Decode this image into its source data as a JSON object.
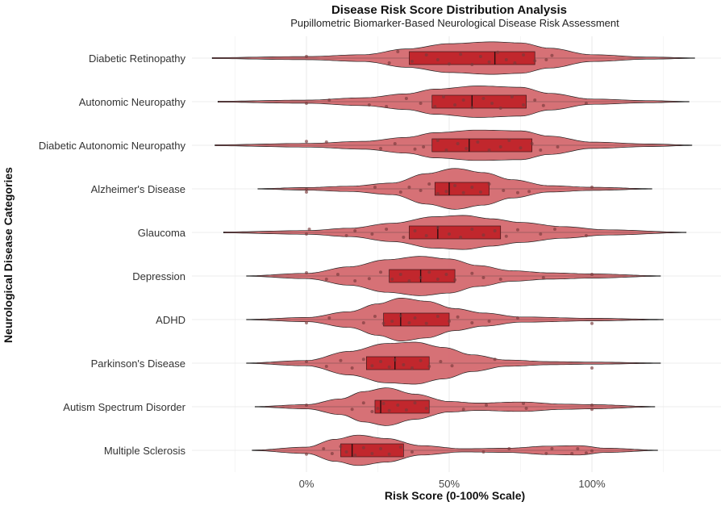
{
  "chart_data": {
    "type": "violin",
    "title": "Disease Risk Score Distribution Analysis",
    "subtitle": "Pupillometric Biomarker-Based Neurological Disease Risk Assessment",
    "xlabel": "Risk Score (0-100% Scale)",
    "ylabel": "Neurological Disease Categories",
    "x_ticks": [
      "0%",
      "50%",
      "100%"
    ],
    "x_tick_values": [
      0,
      50,
      100
    ],
    "xlim": [
      -30,
      145
    ],
    "grid": true,
    "colors": {
      "violin_fill": "#d4696f",
      "box_fill": "#c1272d",
      "point": "#7a3a3c",
      "outline": "#222222"
    },
    "categories": [
      {
        "name": "Diabetic Retinopathy",
        "min": -33,
        "max": 136,
        "q1": 36,
        "median": 66,
        "q3": 80,
        "density": [
          [
            -33,
            0.02
          ],
          [
            0,
            0.06
          ],
          [
            20,
            0.13
          ],
          [
            35,
            0.35
          ],
          [
            50,
            0.55
          ],
          [
            65,
            0.62
          ],
          [
            75,
            0.58
          ],
          [
            85,
            0.38
          ],
          [
            100,
            0.13
          ],
          [
            120,
            0.04
          ],
          [
            136,
            0.01
          ]
        ],
        "points": [
          [
            0,
            -0.05
          ],
          [
            29,
            0.15
          ],
          [
            32,
            -0.2
          ],
          [
            37,
            0.1
          ],
          [
            42,
            -0.1
          ],
          [
            46,
            0.05
          ],
          [
            50,
            0.18
          ],
          [
            54,
            -0.12
          ],
          [
            58,
            0.2
          ],
          [
            61,
            -0.05
          ],
          [
            64,
            0.12
          ],
          [
            67,
            -0.18
          ],
          [
            70,
            0.05
          ],
          [
            73,
            0.15
          ],
          [
            76,
            -0.1
          ],
          [
            80,
            0.08
          ],
          [
            84,
            0.05
          ],
          [
            86,
            -0.08
          ]
        ]
      },
      {
        "name": "Autonomic Neuropathy",
        "min": -31,
        "max": 134,
        "q1": 44,
        "median": 58,
        "q3": 77,
        "density": [
          [
            -31,
            0.02
          ],
          [
            0,
            0.06
          ],
          [
            20,
            0.15
          ],
          [
            35,
            0.3
          ],
          [
            45,
            0.48
          ],
          [
            60,
            0.6
          ],
          [
            75,
            0.55
          ],
          [
            85,
            0.32
          ],
          [
            100,
            0.1
          ],
          [
            120,
            0.04
          ],
          [
            134,
            0.01
          ]
        ],
        "points": [
          [
            0,
            0.05
          ],
          [
            8,
            -0.05
          ],
          [
            22,
            0.1
          ],
          [
            28,
            0.15
          ],
          [
            35,
            -0.1
          ],
          [
            40,
            0.05
          ],
          [
            45,
            0.15
          ],
          [
            48,
            -0.15
          ],
          [
            52,
            0.1
          ],
          [
            55,
            -0.05
          ],
          [
            58,
            0.18
          ],
          [
            62,
            -0.1
          ],
          [
            65,
            0.05
          ],
          [
            68,
            0.2
          ],
          [
            72,
            -0.15
          ],
          [
            76,
            0.1
          ],
          [
            80,
            -0.05
          ],
          [
            83,
            0.12
          ],
          [
            98,
            0.05
          ]
        ]
      },
      {
        "name": "Diabetic Autonomic Neuropathy",
        "min": -32,
        "max": 135,
        "q1": 44,
        "median": 57,
        "q3": 79,
        "density": [
          [
            -32,
            0.02
          ],
          [
            0,
            0.07
          ],
          [
            20,
            0.15
          ],
          [
            35,
            0.3
          ],
          [
            45,
            0.48
          ],
          [
            60,
            0.58
          ],
          [
            75,
            0.55
          ],
          [
            85,
            0.35
          ],
          [
            100,
            0.12
          ],
          [
            120,
            0.05
          ],
          [
            135,
            0.01
          ]
        ],
        "points": [
          [
            0,
            -0.12
          ],
          [
            7,
            -0.1
          ],
          [
            26,
            0.1
          ],
          [
            31,
            -0.05
          ],
          [
            38,
            0.12
          ],
          [
            41,
            0.05
          ],
          [
            46,
            -0.15
          ],
          [
            49,
            0.15
          ],
          [
            53,
            -0.05
          ],
          [
            56,
            0.1
          ],
          [
            60,
            -0.1
          ],
          [
            64,
            0.15
          ],
          [
            68,
            0.05
          ],
          [
            71,
            -0.15
          ],
          [
            75,
            0.08
          ],
          [
            79,
            -0.05
          ],
          [
            82,
            0.15
          ],
          [
            88,
            0.05
          ]
        ]
      },
      {
        "name": "Alzheimer's Disease",
        "min": -17,
        "max": 121,
        "q1": 45,
        "median": 50,
        "q3": 64,
        "density": [
          [
            -17,
            0.01
          ],
          [
            0,
            0.05
          ],
          [
            15,
            0.1
          ],
          [
            30,
            0.22
          ],
          [
            42,
            0.58
          ],
          [
            52,
            0.78
          ],
          [
            62,
            0.62
          ],
          [
            72,
            0.35
          ],
          [
            85,
            0.12
          ],
          [
            100,
            0.06
          ],
          [
            121,
            0.01
          ]
        ],
        "points": [
          [
            0,
            0.1
          ],
          [
            0,
            0.02
          ],
          [
            24,
            -0.05
          ],
          [
            33,
            0.1
          ],
          [
            36,
            -0.05
          ],
          [
            40,
            0.05
          ],
          [
            43,
            -0.15
          ],
          [
            46,
            0.15
          ],
          [
            49,
            0.08
          ],
          [
            52,
            -0.1
          ],
          [
            55,
            0.12
          ],
          [
            58,
            -0.05
          ],
          [
            61,
            0.1
          ],
          [
            64,
            -0.15
          ],
          [
            69,
            0.05
          ],
          [
            74,
            0.12
          ],
          [
            78,
            0.08
          ],
          [
            100,
            -0.05
          ]
        ]
      },
      {
        "name": "Glaucoma",
        "min": -29,
        "max": 133,
        "q1": 36,
        "median": 46,
        "q3": 68,
        "density": [
          [
            -29,
            0.02
          ],
          [
            0,
            0.07
          ],
          [
            15,
            0.16
          ],
          [
            30,
            0.35
          ],
          [
            45,
            0.6
          ],
          [
            55,
            0.65
          ],
          [
            65,
            0.52
          ],
          [
            75,
            0.38
          ],
          [
            90,
            0.22
          ],
          [
            105,
            0.1
          ],
          [
            133,
            0.01
          ]
        ],
        "points": [
          [
            0,
            0.05
          ],
          [
            1,
            -0.1
          ],
          [
            14,
            0.1
          ],
          [
            17,
            -0.05
          ],
          [
            23,
            0.05
          ],
          [
            28,
            -0.1
          ],
          [
            34,
            0.15
          ],
          [
            38,
            -0.05
          ],
          [
            42,
            0.1
          ],
          [
            46,
            -0.15
          ],
          [
            50,
            0.05
          ],
          [
            54,
            0.15
          ],
          [
            58,
            -0.1
          ],
          [
            62,
            0.08
          ],
          [
            66,
            -0.05
          ],
          [
            70,
            0.12
          ],
          [
            74,
            -0.08
          ],
          [
            82,
            0.05
          ],
          [
            87,
            -0.1
          ],
          [
            98,
            0.1
          ]
        ]
      },
      {
        "name": "Depression",
        "min": -21,
        "max": 124,
        "q1": 29,
        "median": 40,
        "q3": 52,
        "density": [
          [
            -21,
            0.01
          ],
          [
            0,
            0.1
          ],
          [
            15,
            0.35
          ],
          [
            28,
            0.62
          ],
          [
            40,
            0.75
          ],
          [
            50,
            0.65
          ],
          [
            60,
            0.4
          ],
          [
            72,
            0.2
          ],
          [
            85,
            0.12
          ],
          [
            100,
            0.08
          ],
          [
            124,
            0.01
          ]
        ],
        "points": [
          [
            0,
            -0.1
          ],
          [
            7,
            0.1
          ],
          [
            11,
            -0.05
          ],
          [
            17,
            0.15
          ],
          [
            22,
            0.08
          ],
          [
            26,
            -0.12
          ],
          [
            30,
            0.1
          ],
          [
            33,
            -0.05
          ],
          [
            36,
            0.15
          ],
          [
            40,
            0.05
          ],
          [
            43,
            -0.12
          ],
          [
            46,
            0.1
          ],
          [
            49,
            -0.05
          ],
          [
            52,
            0.12
          ],
          [
            58,
            -0.08
          ],
          [
            62,
            0.05
          ],
          [
            68,
            0.1
          ],
          [
            83,
            0.05
          ],
          [
            100,
            -0.05
          ]
        ]
      },
      {
        "name": "ADHD",
        "min": -21,
        "max": 125,
        "q1": 27,
        "median": 33,
        "q3": 50,
        "density": [
          [
            -21,
            0.01
          ],
          [
            0,
            0.08
          ],
          [
            15,
            0.3
          ],
          [
            25,
            0.6
          ],
          [
            33,
            0.82
          ],
          [
            42,
            0.7
          ],
          [
            52,
            0.42
          ],
          [
            62,
            0.25
          ],
          [
            75,
            0.1
          ],
          [
            100,
            0.05
          ],
          [
            125,
            0.01
          ]
        ],
        "points": [
          [
            0,
            0.1
          ],
          [
            8,
            -0.05
          ],
          [
            20,
            0.1
          ],
          [
            24,
            -0.1
          ],
          [
            27,
            0.12
          ],
          [
            30,
            0.05
          ],
          [
            33,
            -0.12
          ],
          [
            36,
            0.1
          ],
          [
            38,
            -0.05
          ],
          [
            42,
            0.12
          ],
          [
            46,
            -0.1
          ],
          [
            50,
            0.05
          ],
          [
            53,
            -0.08
          ],
          [
            58,
            0.1
          ],
          [
            64,
            0.05
          ],
          [
            74,
            -0.05
          ],
          [
            100,
            0.12
          ]
        ]
      },
      {
        "name": "Parkinson's Disease",
        "min": -21,
        "max": 124,
        "q1": 21,
        "median": 31,
        "q3": 43,
        "density": [
          [
            -21,
            0.01
          ],
          [
            0,
            0.1
          ],
          [
            15,
            0.45
          ],
          [
            28,
            0.75
          ],
          [
            38,
            0.8
          ],
          [
            48,
            0.6
          ],
          [
            58,
            0.32
          ],
          [
            70,
            0.12
          ],
          [
            85,
            0.06
          ],
          [
            100,
            0.04
          ],
          [
            124,
            0.01
          ]
        ],
        "points": [
          [
            0,
            -0.05
          ],
          [
            7,
            0.1
          ],
          [
            12,
            -0.08
          ],
          [
            16,
            0.15
          ],
          [
            20,
            -0.12
          ],
          [
            23,
            0.08
          ],
          [
            26,
            -0.05
          ],
          [
            29,
            0.12
          ],
          [
            31,
            -0.1
          ],
          [
            34,
            0.05
          ],
          [
            37,
            0.15
          ],
          [
            40,
            -0.08
          ],
          [
            43,
            0.1
          ],
          [
            47,
            -0.05
          ],
          [
            51,
            0.08
          ],
          [
            66,
            -0.12
          ],
          [
            100,
            0.15
          ]
        ]
      },
      {
        "name": "Autism Spectrum Disorder",
        "min": -18,
        "max": 122,
        "q1": 24,
        "median": 26,
        "q3": 43,
        "density": [
          [
            -18,
            0.01
          ],
          [
            0,
            0.08
          ],
          [
            12,
            0.3
          ],
          [
            20,
            0.58
          ],
          [
            28,
            0.72
          ],
          [
            38,
            0.48
          ],
          [
            50,
            0.2
          ],
          [
            60,
            0.14
          ],
          [
            75,
            0.18
          ],
          [
            90,
            0.1
          ],
          [
            100,
            0.08
          ],
          [
            122,
            0.01
          ]
        ],
        "points": [
          [
            0,
            -0.05
          ],
          [
            16,
            0.08
          ],
          [
            20,
            -0.12
          ],
          [
            23,
            0.15
          ],
          [
            25,
            0.05
          ],
          [
            27,
            -0.1
          ],
          [
            29,
            0.12
          ],
          [
            32,
            -0.05
          ],
          [
            35,
            0.1
          ],
          [
            38,
            -0.12
          ],
          [
            42,
            0.05
          ],
          [
            55,
            0.08
          ],
          [
            63,
            -0.05
          ],
          [
            76,
            -0.1
          ],
          [
            77,
            0.05
          ],
          [
            100,
            0.08
          ],
          [
            100,
            -0.05
          ]
        ]
      },
      {
        "name": "Multiple Sclerosis",
        "min": -19,
        "max": 123,
        "q1": 12,
        "median": 16,
        "q3": 34,
        "density": [
          [
            -19,
            0.01
          ],
          [
            0,
            0.12
          ],
          [
            10,
            0.42
          ],
          [
            18,
            0.58
          ],
          [
            28,
            0.45
          ],
          [
            40,
            0.18
          ],
          [
            55,
            0.06
          ],
          [
            70,
            0.08
          ],
          [
            85,
            0.16
          ],
          [
            95,
            0.18
          ],
          [
            105,
            0.08
          ],
          [
            123,
            0.01
          ]
        ],
        "points": [
          [
            0,
            0.12
          ],
          [
            6,
            -0.05
          ],
          [
            9,
            0.1
          ],
          [
            12,
            -0.12
          ],
          [
            14,
            0.05
          ],
          [
            17,
            0.15
          ],
          [
            20,
            -0.08
          ],
          [
            23,
            0.1
          ],
          [
            26,
            -0.05
          ],
          [
            29,
            0.12
          ],
          [
            33,
            -0.1
          ],
          [
            37,
            0.05
          ],
          [
            62,
            0.05
          ],
          [
            71,
            -0.05
          ],
          [
            84,
            0.1
          ],
          [
            86,
            -0.05
          ],
          [
            93,
            0.1
          ],
          [
            95,
            -0.05
          ],
          [
            98,
            0.08
          ],
          [
            100,
            0.02
          ]
        ]
      }
    ]
  }
}
